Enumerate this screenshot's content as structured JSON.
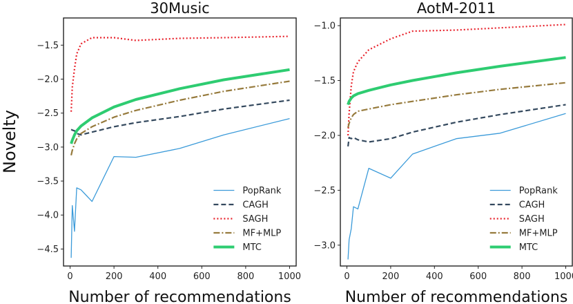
{
  "figure": {
    "ylabel": "Novelty",
    "legend_position": "bottom-right"
  },
  "series_styles": [
    {
      "name": "PopRank",
      "color": "#3a9ad9",
      "width": 1.3,
      "dash": ""
    },
    {
      "name": "CAGH",
      "color": "#34495e",
      "width": 2.2,
      "dash": "7,4"
    },
    {
      "name": "SAGH",
      "color": "#e8202a",
      "width": 2.2,
      "dash": "2,3"
    },
    {
      "name": "MF+MLP",
      "color": "#967a3c",
      "width": 2.2,
      "dash": "9,3,2,3"
    },
    {
      "name": "MTC",
      "color": "#2ecc71",
      "width": 4,
      "dash": ""
    }
  ],
  "chart_data": [
    {
      "type": "line",
      "title": "30Music",
      "xlabel": "Number of recommendations",
      "ylabel": "Novelty",
      "xlim": [
        -30,
        1030
      ],
      "ylim": [
        -4.75,
        -1.1
      ],
      "xticks": [
        0,
        200,
        400,
        600,
        800,
        1000
      ],
      "xtick_labels": [
        "0",
        "200",
        "400",
        "600",
        "800",
        "1000"
      ],
      "yticks": [
        -4.5,
        -4.0,
        -3.5,
        -3.0,
        -2.5,
        -2.0,
        -1.5
      ],
      "ytick_labels": [
        "−4.5",
        "−4.0",
        "−3.5",
        "−3.0",
        "−2.5",
        "−2.0",
        "−1.5"
      ],
      "series": [
        {
          "name": "PopRank",
          "x": [
            5,
            10,
            20,
            30,
            50,
            100,
            200,
            300,
            500,
            700,
            1000
          ],
          "values": [
            -4.63,
            -3.86,
            -4.24,
            -3.6,
            -3.63,
            -3.8,
            -3.14,
            -3.15,
            -3.02,
            -2.82,
            -2.58
          ]
        },
        {
          "name": "CAGH",
          "x": [
            5,
            10,
            20,
            30,
            50,
            100,
            200,
            300,
            500,
            700,
            1000
          ],
          "values": [
            -2.74,
            -2.75,
            -2.76,
            -2.8,
            -2.82,
            -2.78,
            -2.7,
            -2.64,
            -2.55,
            -2.44,
            -2.31
          ]
        },
        {
          "name": "SAGH",
          "x": [
            5,
            10,
            20,
            30,
            50,
            100,
            200,
            300,
            500,
            700,
            1000
          ],
          "values": [
            -2.48,
            -2.12,
            -1.85,
            -1.63,
            -1.48,
            -1.39,
            -1.39,
            -1.43,
            -1.4,
            -1.39,
            -1.37
          ]
        },
        {
          "name": "MF+MLP",
          "x": [
            5,
            10,
            20,
            30,
            50,
            100,
            200,
            300,
            500,
            700,
            1000
          ],
          "values": [
            -3.12,
            -3.05,
            -2.95,
            -2.88,
            -2.8,
            -2.7,
            -2.56,
            -2.46,
            -2.31,
            -2.18,
            -2.03
          ]
        },
        {
          "name": "MTC",
          "x": [
            5,
            10,
            20,
            30,
            50,
            100,
            200,
            300,
            500,
            700,
            1000
          ],
          "values": [
            -2.95,
            -2.9,
            -2.82,
            -2.76,
            -2.69,
            -2.57,
            -2.41,
            -2.3,
            -2.14,
            -2.01,
            -1.86
          ]
        }
      ]
    },
    {
      "type": "line",
      "title": "AotM-2011",
      "xlabel": "Number of recommendations",
      "ylabel": "",
      "xlim": [
        -30,
        1030
      ],
      "ylim": [
        -3.19,
        -0.93
      ],
      "xticks": [
        0,
        200,
        400,
        600,
        800,
        1000
      ],
      "xtick_labels": [
        "0",
        "200",
        "400",
        "600",
        "800",
        "1000"
      ],
      "yticks": [
        -3.0,
        -2.5,
        -2.0,
        -1.5,
        -1.0
      ],
      "ytick_labels": [
        "−3.0",
        "−2.5",
        "−2.0",
        "−1.5",
        "−1.0"
      ],
      "series": [
        {
          "name": "PopRank",
          "x": [
            5,
            10,
            20,
            30,
            50,
            100,
            200,
            300,
            500,
            700,
            1000
          ],
          "values": [
            -3.13,
            -2.95,
            -2.85,
            -2.65,
            -2.67,
            -2.3,
            -2.39,
            -2.17,
            -2.03,
            -1.98,
            -1.8
          ]
        },
        {
          "name": "CAGH",
          "x": [
            5,
            10,
            20,
            30,
            50,
            100,
            200,
            300,
            500,
            700,
            1000
          ],
          "values": [
            -2.1,
            -2.02,
            -2.03,
            -2.02,
            -2.04,
            -2.06,
            -2.03,
            -1.97,
            -1.88,
            -1.81,
            -1.72
          ]
        },
        {
          "name": "SAGH",
          "x": [
            5,
            10,
            20,
            30,
            50,
            100,
            200,
            300,
            500,
            700,
            1000
          ],
          "values": [
            -2.0,
            -1.8,
            -1.55,
            -1.42,
            -1.33,
            -1.22,
            -1.12,
            -1.05,
            -1.04,
            -1.02,
            -0.99
          ]
        },
        {
          "name": "MF+MLP",
          "x": [
            5,
            10,
            20,
            30,
            50,
            100,
            200,
            300,
            500,
            700,
            1000
          ],
          "values": [
            -1.93,
            -1.89,
            -1.84,
            -1.81,
            -1.78,
            -1.76,
            -1.72,
            -1.69,
            -1.63,
            -1.58,
            -1.52
          ]
        },
        {
          "name": "MTC",
          "x": [
            5,
            10,
            20,
            30,
            50,
            100,
            200,
            300,
            500,
            700,
            1000
          ],
          "values": [
            -1.72,
            -1.69,
            -1.66,
            -1.64,
            -1.62,
            -1.59,
            -1.54,
            -1.5,
            -1.43,
            -1.37,
            -1.29
          ]
        }
      ]
    }
  ]
}
